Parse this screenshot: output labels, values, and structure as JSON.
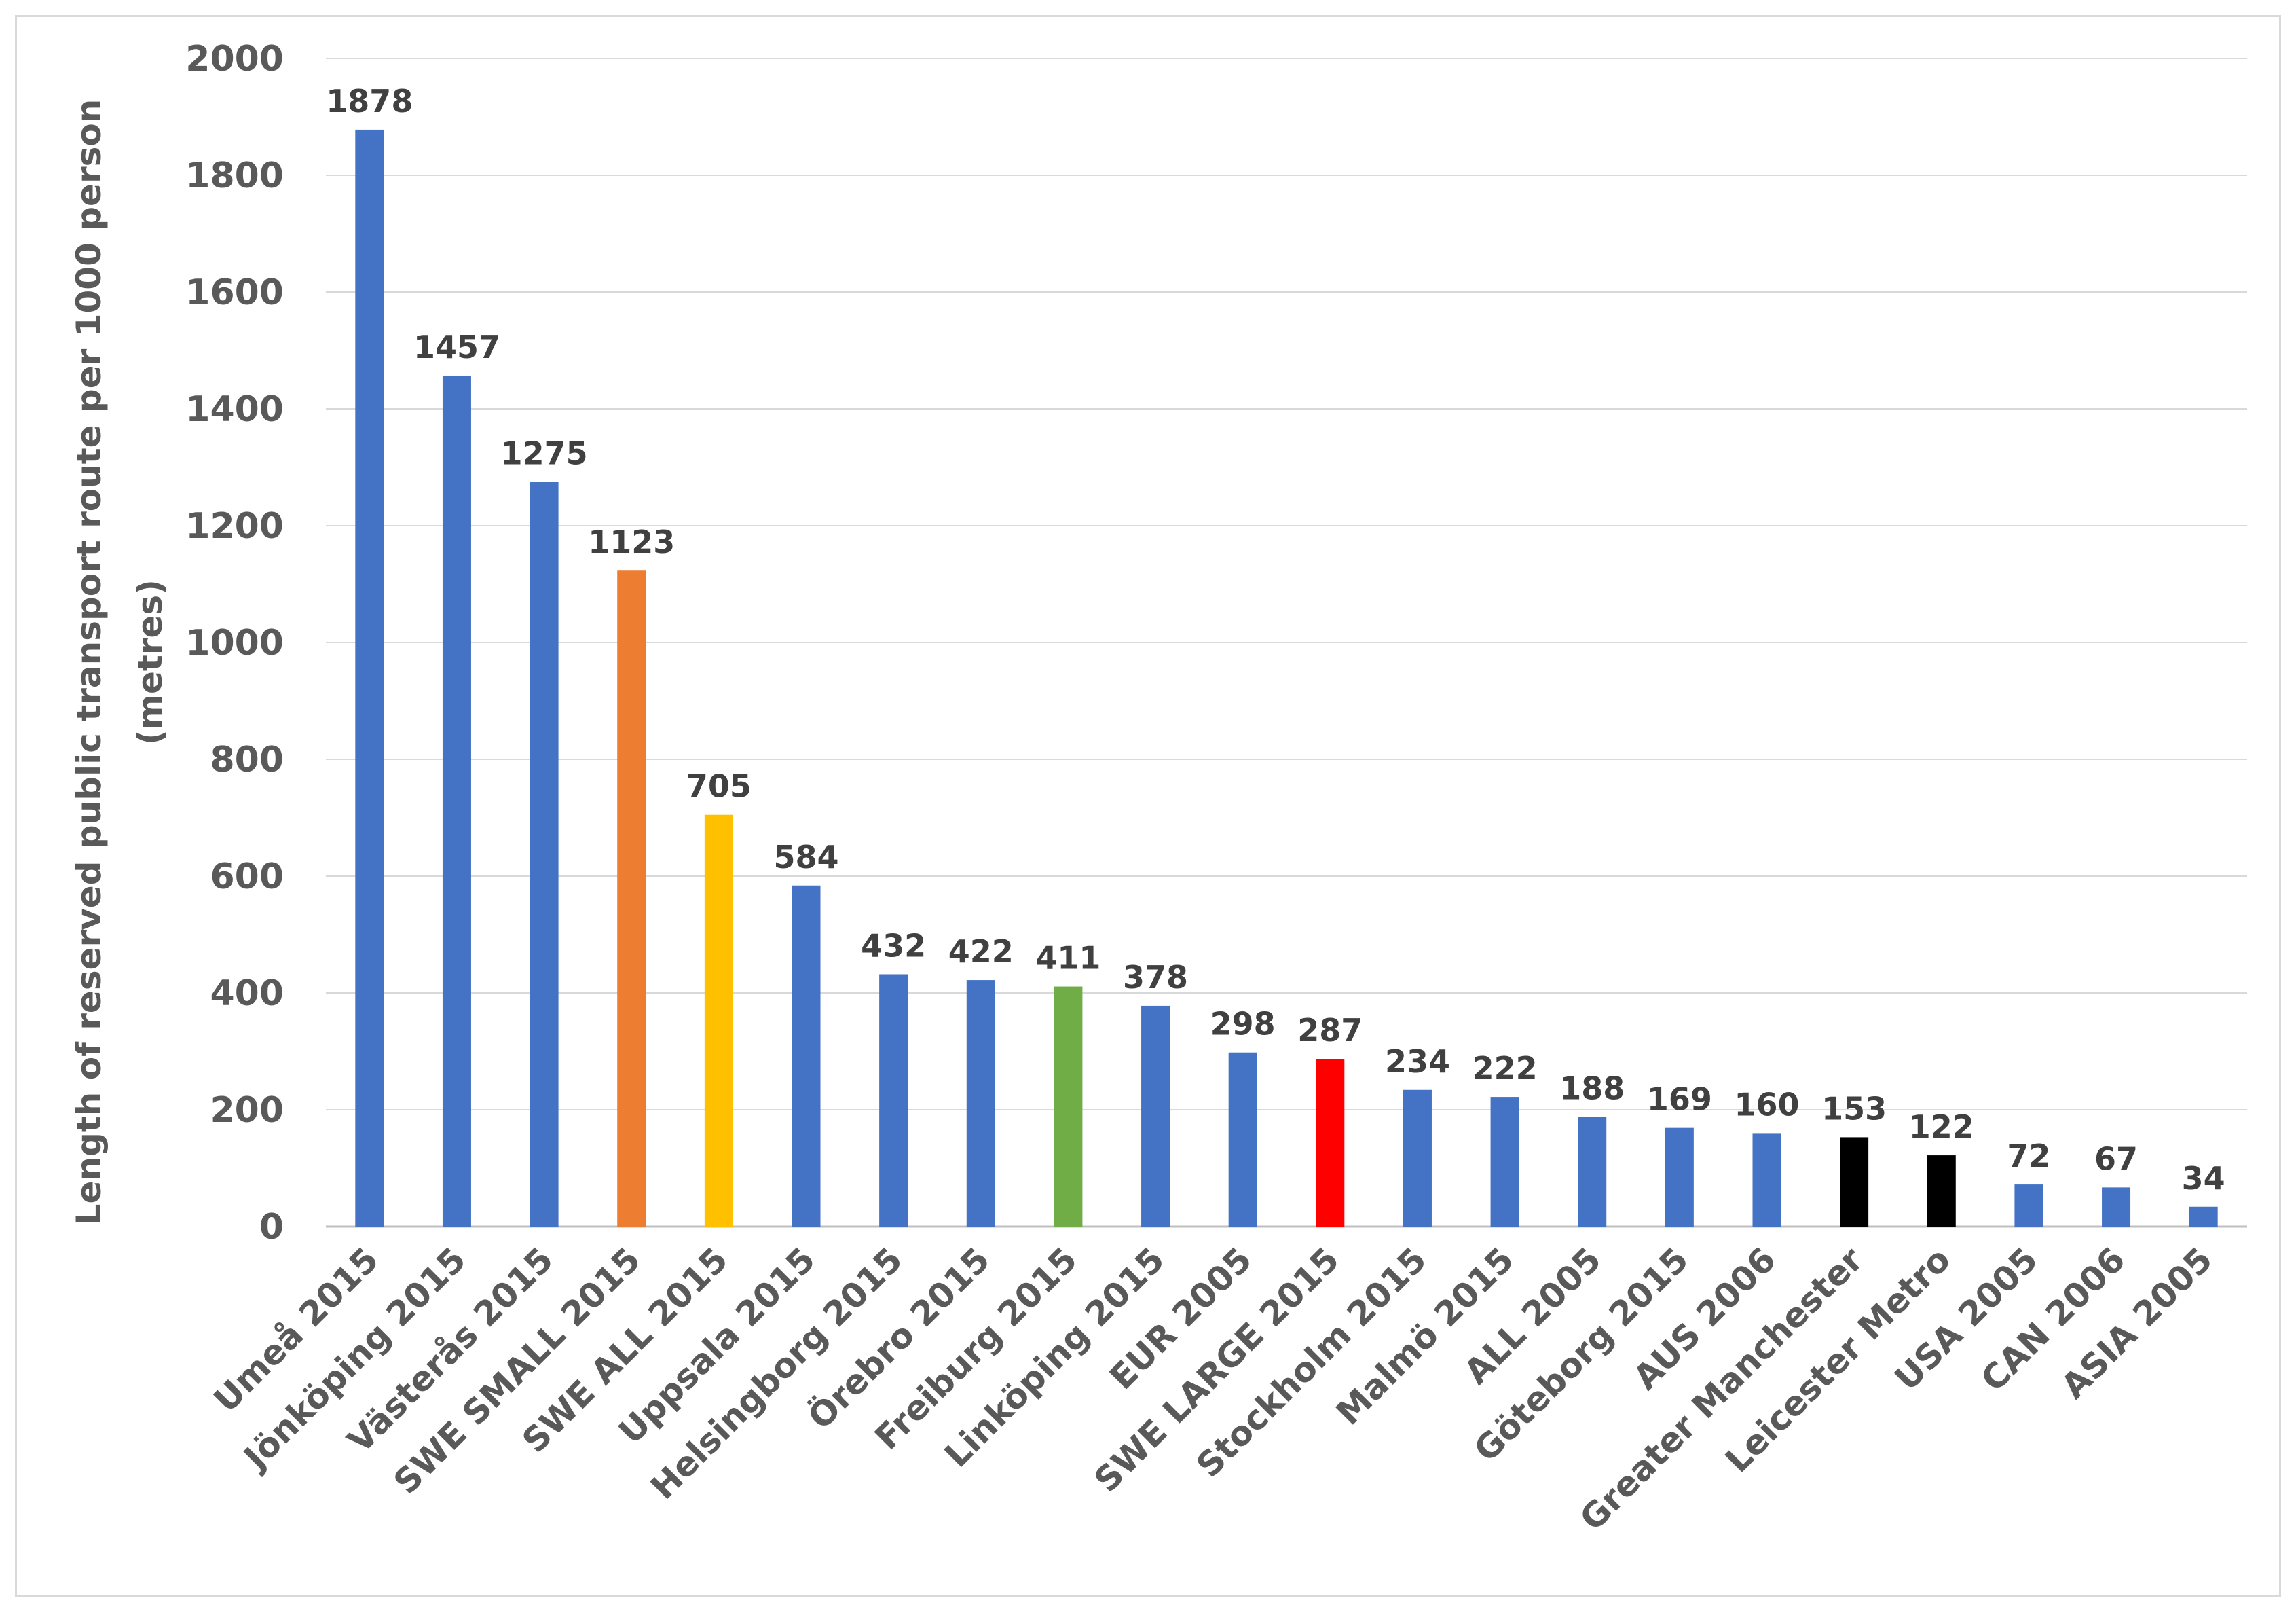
{
  "chart_data": {
    "type": "bar",
    "title": "",
    "xlabel": "",
    "ylabel_line1": "Length of reserved public transport  route per 1000 person",
    "ylabel_line2": "(metres)",
    "ylim": [
      0,
      2000
    ],
    "yticks": [
      0,
      200,
      400,
      600,
      800,
      1000,
      1200,
      1400,
      1600,
      1800,
      2000
    ],
    "grid": true,
    "legend": "none",
    "categories": [
      "Umeå 2015",
      "Jönköping 2015",
      "Västerås 2015",
      "SWE SMALL 2015",
      "SWE ALL 2015",
      "Uppsala 2015",
      "Helsingborg 2015",
      "Örebro 2015",
      "Freiburg 2015",
      "Linköping 2015",
      "EUR 2005",
      "SWE LARGE 2015",
      "Stockholm 2015",
      "Malmö 2015",
      "ALL 2005",
      "Göteborg 2015",
      "AUS 2006",
      "Greater Manchester",
      "Leicester Metro",
      "USA 2005",
      "CAN 2006",
      "ASIA 2005"
    ],
    "values": [
      1878,
      1457,
      1275,
      1123,
      705,
      584,
      432,
      422,
      411,
      378,
      298,
      287,
      234,
      222,
      188,
      169,
      160,
      153,
      122,
      72,
      67,
      34
    ],
    "colors": [
      "#4472c4",
      "#4472c4",
      "#4472c4",
      "#ed7d31",
      "#ffc000",
      "#4472c4",
      "#4472c4",
      "#4472c4",
      "#70ad47",
      "#4472c4",
      "#4472c4",
      "#ff0000",
      "#4472c4",
      "#4472c4",
      "#4472c4",
      "#4472c4",
      "#4472c4",
      "#000000",
      "#000000",
      "#4472c4",
      "#4472c4",
      "#4472c4"
    ]
  }
}
